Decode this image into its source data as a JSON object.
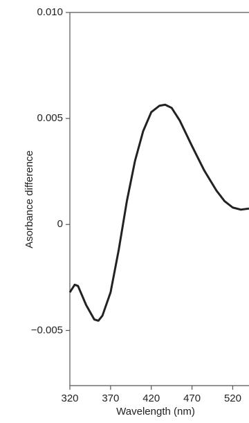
{
  "chart_data": {
    "type": "line",
    "xlabel": "Wavelength (nm)",
    "ylabel": "Asorbance difference",
    "x": [
      320,
      326,
      330,
      340,
      350,
      355,
      360,
      370,
      380,
      390,
      400,
      410,
      420,
      430,
      437,
      445,
      455,
      470,
      485,
      500,
      510,
      520,
      530,
      540
    ],
    "series": [
      {
        "color": "#222222",
        "values": [
          -0.0032,
          -0.00284,
          -0.0029,
          -0.0038,
          -0.00448,
          -0.00454,
          -0.0043,
          -0.0032,
          -0.0012,
          0.0011,
          0.003,
          0.0044,
          0.0053,
          0.0056,
          0.00565,
          0.0055,
          0.0049,
          0.0037,
          0.00255,
          0.0016,
          0.0011,
          0.0008,
          0.0007,
          0.00075
        ]
      }
    ],
    "xlim": [
      320,
      540
    ],
    "ylim": [
      -0.0076,
      0.01
    ],
    "xticks": [
      320,
      370,
      420,
      470,
      520
    ],
    "yticks": [
      {
        "value": -0.005,
        "label": "−0.005"
      },
      0,
      0.005,
      {
        "value": 0.01,
        "label": "0.010"
      }
    ]
  }
}
